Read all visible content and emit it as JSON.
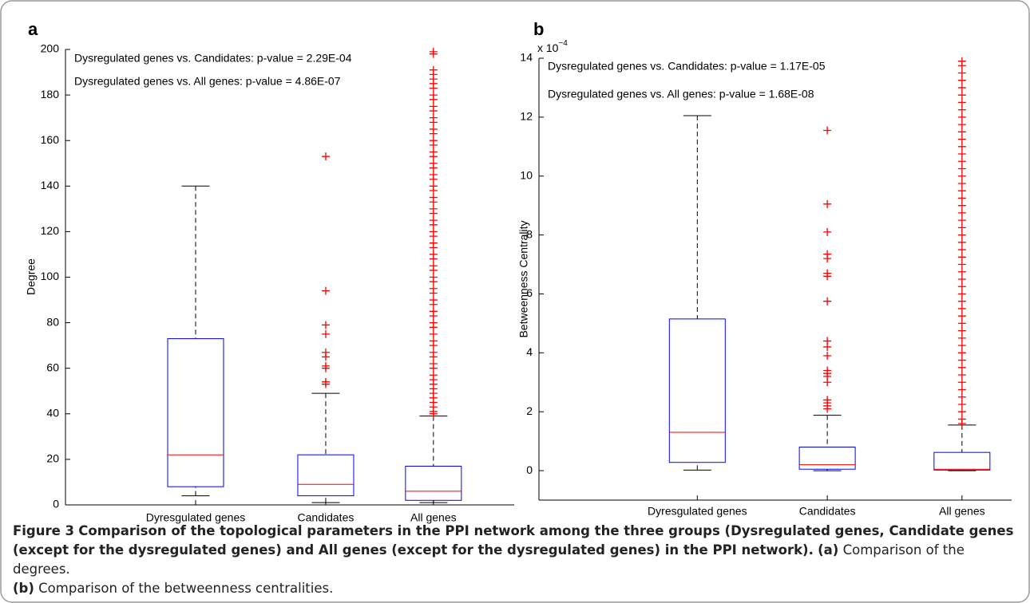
{
  "chart_data": [
    {
      "type": "box",
      "panel_label": "a",
      "ylabel": "Degree",
      "categories": [
        "Dyresgulated genes",
        "Candidates",
        "All genes"
      ],
      "annotations": [
        "Dysregulated genes vs. Candidates: p-value = 2.29E-04",
        "Dysregulated genes vs. All genes: p-value = 4.86E-07"
      ],
      "ylim": [
        0,
        200
      ],
      "yticks": [
        0,
        20,
        40,
        60,
        80,
        100,
        120,
        140,
        160,
        180,
        200
      ],
      "box_color": "#0000ff",
      "median_color": "#ff0000",
      "outlier_color": "#ff0000",
      "boxes": [
        {
          "whislo": 4,
          "q1": 8,
          "median": 22,
          "q3": 73,
          "whishi": 140,
          "outliers": []
        },
        {
          "whislo": 1,
          "q1": 4,
          "median": 9,
          "q3": 22,
          "whishi": 49,
          "outliers": [
            53,
            54,
            60,
            61,
            65,
            67,
            75,
            79,
            94,
            153
          ]
        },
        {
          "whislo": 1,
          "q1": 2,
          "median": 6,
          "q3": 17,
          "whishi": 39,
          "outliers": [
            40,
            41,
            43,
            45,
            47,
            49,
            51,
            53,
            55,
            57,
            60,
            62,
            65,
            67,
            70,
            72,
            75,
            78,
            80,
            83,
            85,
            88,
            90,
            93,
            95,
            98,
            100,
            103,
            105,
            108,
            110,
            113,
            115,
            118,
            120,
            123,
            125,
            128,
            130,
            133,
            135,
            138,
            140,
            143,
            145,
            148,
            150,
            153,
            155,
            158,
            160,
            163,
            165,
            168,
            170,
            173,
            175,
            178,
            180,
            183,
            185,
            187,
            189,
            191,
            198,
            199
          ]
        }
      ]
    },
    {
      "type": "box",
      "panel_label": "b",
      "ylabel": "Betweenness Centrality",
      "y_multiplier": {
        "base": "x 10",
        "exponent": "−4"
      },
      "categories": [
        "Dyresgulated genes",
        "Candidates",
        "All genes"
      ],
      "annotations": [
        "Dysregulated genes vs. Candidates: p-value = 1.17E-05",
        "Dysregulated genes vs. All genes: p-value = 1.68E-08"
      ],
      "ylim": [
        -1,
        14
      ],
      "yticks": [
        0,
        2,
        4,
        6,
        8,
        10,
        12,
        14
      ],
      "box_color": "#0000ff",
      "median_color": "#ff0000",
      "outlier_color": "#ff0000",
      "boxes": [
        {
          "whislo": 0.02,
          "q1": 0.28,
          "median": 1.3,
          "q3": 5.15,
          "whishi": 12.05,
          "outliers": []
        },
        {
          "whislo": 0,
          "q1": 0.05,
          "median": 0.2,
          "q3": 0.8,
          "whishi": 1.88,
          "outliers": [
            2.1,
            2.2,
            2.3,
            2.4,
            3.0,
            3.2,
            3.3,
            3.4,
            3.9,
            4.2,
            4.4,
            5.75,
            6.6,
            6.7,
            7.2,
            7.35,
            8.1,
            9.05,
            11.55
          ]
        },
        {
          "whislo": 0,
          "q1": 0.02,
          "median": 0.05,
          "q3": 0.62,
          "whishi": 1.55,
          "outliers": [
            1.6,
            1.75,
            2.0,
            2.25,
            2.5,
            2.75,
            3.0,
            3.25,
            3.5,
            3.75,
            4.0,
            4.25,
            4.5,
            4.75,
            5.0,
            5.25,
            5.5,
            5.75,
            6.0,
            6.25,
            6.5,
            6.75,
            7.0,
            7.25,
            7.5,
            7.75,
            8.0,
            8.25,
            8.5,
            8.75,
            9.0,
            9.25,
            9.5,
            9.75,
            10.0,
            10.25,
            10.5,
            10.75,
            11.0,
            11.25,
            11.5,
            11.75,
            12.0,
            12.25,
            12.5,
            12.75,
            13.0,
            13.25,
            13.5,
            13.75,
            13.9
          ]
        }
      ]
    }
  ],
  "caption": {
    "figure": "Figure 3",
    "title": "Comparison of the topological parameters in the PPI network among the three groups (Dysregulated genes, Candidate genes (except for the dysregulated genes) and All genes (except for the dysregulated genes) in the PPI network).",
    "a_label": "(a)",
    "a_text": "Comparison of the degrees.",
    "b_label": "(b)",
    "b_text": "Comparison of the betweenness centralities."
  }
}
